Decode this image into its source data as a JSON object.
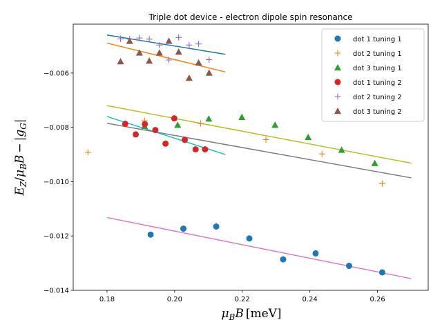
{
  "chart_data": {
    "type": "scatter",
    "title": "Triple dot device - electron dipole spin resonance",
    "xlabel": "μ_B B [meV]",
    "ylabel": "E_Z / μ_B B − |g_G|",
    "xlim": [
      0.17,
      0.275
    ],
    "ylim": [
      -0.014,
      -0.0042
    ],
    "xticks": [
      0.18,
      0.2,
      0.22,
      0.24,
      0.26
    ],
    "xtick_labels": [
      "0.18",
      "0.20",
      "0.22",
      "0.24",
      "0.26"
    ],
    "yticks": [
      -0.014,
      -0.012,
      -0.01,
      -0.008,
      -0.006
    ],
    "ytick_labels": [
      "−0.014",
      "−0.012",
      "−0.010",
      "−0.008",
      "−0.006"
    ],
    "legend_position": "top-right",
    "series": [
      {
        "name": "dot 1 tuning 1",
        "marker": "circle",
        "color": "#1f77b4",
        "x": [
          0.1929,
          0.2026,
          0.2123,
          0.2221,
          0.2321,
          0.2417,
          0.2516,
          0.2614
        ],
        "y": [
          -0.01195,
          -0.01173,
          -0.01165,
          -0.01209,
          -0.01286,
          -0.01264,
          -0.0131,
          -0.01334
        ]
      },
      {
        "name": "dot 2 tuning 1",
        "marker": "plus",
        "color": "#ff7f0e",
        "x": [
          0.1744,
          0.1911,
          0.2077,
          0.227,
          0.2436,
          0.2614
        ],
        "y": [
          -0.00892,
          -0.00776,
          -0.00786,
          -0.00845,
          -0.00898,
          -0.01007
        ]
      },
      {
        "name": "dot 3 tuning 1",
        "marker": "triangle",
        "color": "#2ca02c",
        "x": [
          0.1911,
          0.2009,
          0.2101,
          0.2199,
          0.2297,
          0.2395,
          0.2494,
          0.2592
        ],
        "y": [
          -0.00795,
          -0.00791,
          -0.00768,
          -0.00762,
          -0.00791,
          -0.00836,
          -0.00883,
          -0.00932
        ]
      },
      {
        "name": "dot 1 tuning 2",
        "marker": "circle",
        "color": "#d62728",
        "x": [
          0.1854,
          0.1885,
          0.1912,
          0.1943,
          0.1973,
          0.1999,
          0.203,
          0.2062,
          0.209
        ],
        "y": [
          -0.00787,
          -0.00826,
          -0.00788,
          -0.0081,
          -0.0086,
          -0.00767,
          -0.00846,
          -0.00881,
          -0.00881
        ]
      },
      {
        "name": "dot 2 tuning 2",
        "marker": "plus",
        "color": "#9467bd",
        "x": [
          0.184,
          0.1867,
          0.1896,
          0.1925,
          0.1955,
          0.1983,
          0.2012,
          0.2043,
          0.2071,
          0.2102
        ],
        "y": [
          -0.00474,
          -0.00475,
          -0.00471,
          -0.00475,
          -0.00497,
          -0.00552,
          -0.00469,
          -0.00497,
          -0.00493,
          -0.00551
        ]
      },
      {
        "name": "dot 3 tuning 2",
        "marker": "triangle",
        "color": "#8c564b",
        "x": [
          0.184,
          0.1867,
          0.1896,
          0.1925,
          0.1955,
          0.1983,
          0.2012,
          0.2043,
          0.2071,
          0.2102
        ],
        "y": [
          -0.00557,
          -0.00482,
          -0.00525,
          -0.00555,
          -0.00525,
          -0.00482,
          -0.00522,
          -0.00618,
          -0.00562,
          -0.00599
        ]
      }
    ],
    "fit_lines": [
      {
        "name": "dot 1 tuning 1 fit",
        "color": "#e377c2",
        "x": [
          0.18,
          0.27
        ],
        "y": [
          -0.01132,
          -0.01357
        ]
      },
      {
        "name": "dot 2 tuning 1 fit",
        "color": "#ff7f0e",
        "x": [
          0.18,
          0.215
        ],
        "y": [
          -0.0049,
          -0.00596
        ]
      },
      {
        "name": "dot 3 tuning 1 fit",
        "color": "#bcbd22",
        "x": [
          0.18,
          0.27
        ],
        "y": [
          -0.0072,
          -0.00932
        ]
      },
      {
        "name": "dot 1 tuning 2 fit",
        "color": "#17becf",
        "x": [
          0.18,
          0.215
        ],
        "y": [
          -0.0076,
          -0.009
        ]
      },
      {
        "name": "dot 2 tuning 2 fit",
        "color": "#1f77b4",
        "x": [
          0.18,
          0.215
        ],
        "y": [
          -0.0046,
          -0.00531
        ]
      },
      {
        "name": "dot 3 tuning 2 fit",
        "color": "#7f7f7f",
        "x": [
          0.18,
          0.27
        ],
        "y": [
          -0.00785,
          -0.00986
        ]
      }
    ]
  }
}
